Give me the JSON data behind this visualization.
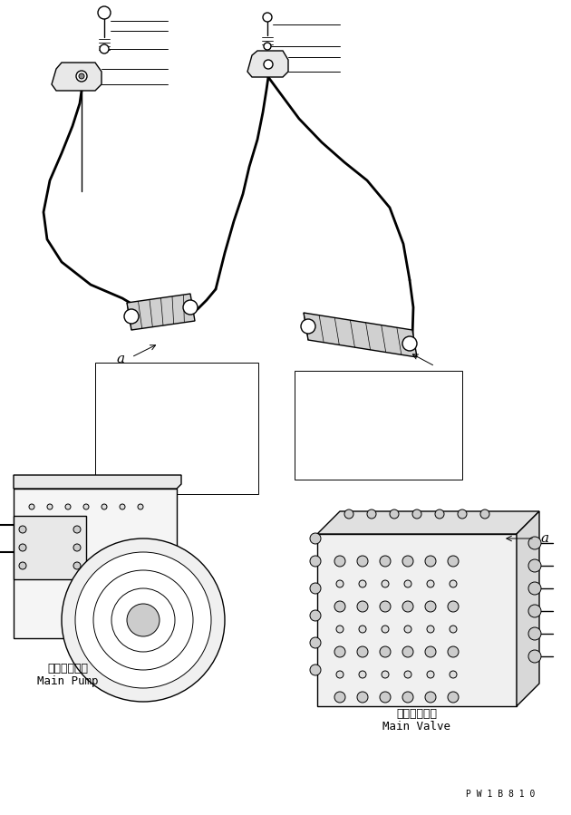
{
  "bg_color": "#ffffff",
  "line_color": "#000000",
  "figure_width": 6.3,
  "figure_height": 8.99,
  "dpi": 100,
  "label_main_pump_jp": "メインポンプ",
  "label_main_pump_en": "Main Pump",
  "label_main_valve_jp": "メインバルブ",
  "label_main_valve_en": "Main Valve",
  "watermark": "P W 1 B 8 1 0",
  "label_a": "a"
}
